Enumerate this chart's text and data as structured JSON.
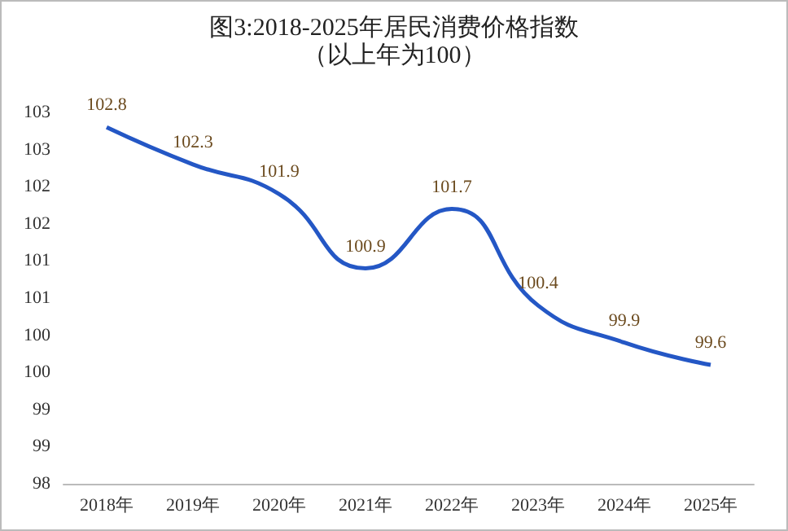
{
  "chart_data": {
    "type": "line",
    "title": "图3:2018-2025年居民消费价格指数",
    "subtitle": "（以上年为100）",
    "categories": [
      "2018年",
      "2019年",
      "2020年",
      "2021年",
      "2022年",
      "2023年",
      "2024年",
      "2025年"
    ],
    "series": [
      {
        "color": "#2457c5",
        "values": [
          102.8,
          102.3,
          101.9,
          100.9,
          101.7,
          100.4,
          99.9,
          99.6
        ]
      }
    ],
    "ylim": [
      98,
      103
    ],
    "yticks": [
      {
        "value": 98,
        "label": "98"
      },
      {
        "value": 98.5,
        "label": "99"
      },
      {
        "value": 99,
        "label": "99"
      },
      {
        "value": 99.5,
        "label": "100"
      },
      {
        "value": 100,
        "label": "100"
      },
      {
        "value": 100.5,
        "label": "101"
      },
      {
        "value": 101,
        "label": "101"
      },
      {
        "value": 101.5,
        "label": "102"
      },
      {
        "value": 102,
        "label": "102"
      },
      {
        "value": 102.5,
        "label": "103"
      },
      {
        "value": 103,
        "label": "103"
      }
    ],
    "data_labels": true,
    "grid": false,
    "marker": "none",
    "line_style": "solid"
  }
}
